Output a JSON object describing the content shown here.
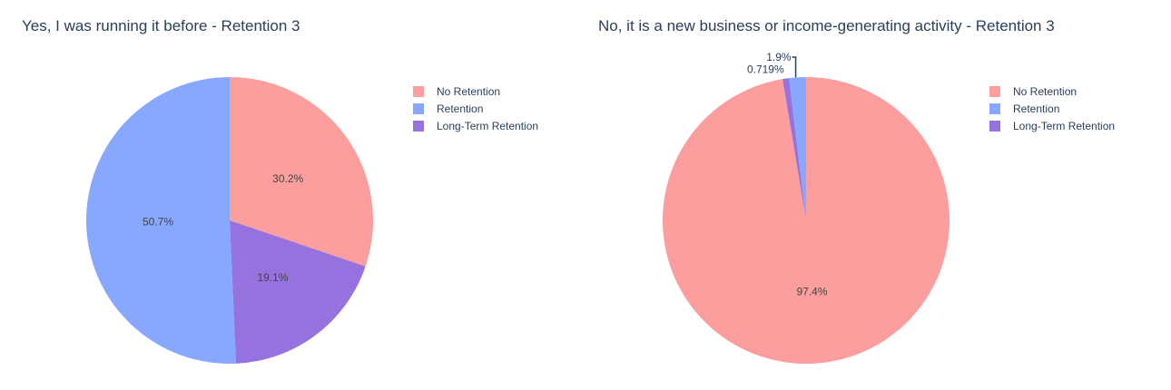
{
  "chart_data": [
    {
      "type": "pie",
      "title": "Yes, I was running it before - Retention 3",
      "labels": [
        "No Retention",
        "Retention",
        "Long-Term Retention"
      ],
      "values": [
        30.2,
        50.7,
        19.1
      ],
      "text": [
        "30.2%",
        "50.7%",
        "19.1%"
      ],
      "colors": [
        "#fc9e9d",
        "#87a8fe",
        "#9572dd"
      ],
      "order": [
        0,
        2,
        1
      ],
      "legend_position": "top-right"
    },
    {
      "type": "pie",
      "title": "No, it is a new business or income-generating activity - Retention 3",
      "labels": [
        "No Retention",
        "Retention",
        "Long-Term Retention"
      ],
      "values": [
        97.4,
        1.9,
        0.719
      ],
      "text": [
        "97.4%",
        "1.9%",
        "0.719%"
      ],
      "colors": [
        "#fc9e9d",
        "#87a8fe",
        "#9572dd"
      ],
      "order": [
        0,
        2,
        1
      ],
      "legend_position": "top-right"
    }
  ]
}
